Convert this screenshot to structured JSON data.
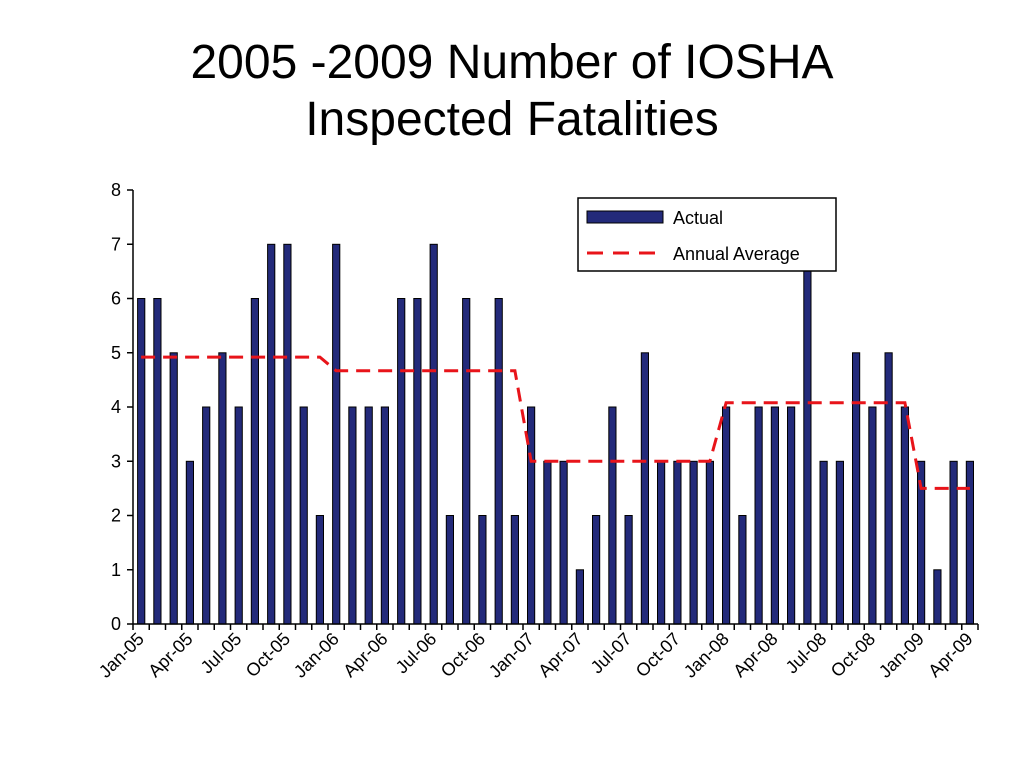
{
  "chart_data": {
    "type": "bar",
    "title": [
      "2005 -2009 Number of IOSHA",
      "Inspected Fatalities"
    ],
    "xlabel": "",
    "ylabel": "",
    "ylim": [
      0,
      8
    ],
    "yticks": [
      "0",
      "1",
      "2",
      "3",
      "4",
      "5",
      "6",
      "7",
      "8"
    ],
    "grid": false,
    "legend_position": "top-right",
    "colors": {
      "bar_fill": "#232a7a",
      "bar_stroke": "#000000",
      "average_line": "#e8141a"
    },
    "tick_labels": [
      "Jan-05",
      "Apr-05",
      "Jul-05",
      "Oct-05",
      "Jan-06",
      "Apr-06",
      "Jul-06",
      "Oct-06",
      "Jan-07",
      "Apr-07",
      "Jul-07",
      "Oct-07",
      "Jan-08",
      "Apr-08",
      "Jul-08",
      "Oct-08",
      "Jan-09",
      "Apr-09"
    ],
    "series": [
      {
        "name": "Actual",
        "kind": "bar",
        "values": [
          6,
          6,
          5,
          3,
          4,
          5,
          4,
          6,
          7,
          7,
          4,
          2,
          7,
          4,
          4,
          4,
          6,
          6,
          7,
          2,
          6,
          2,
          6,
          2,
          4,
          3,
          3,
          1,
          2,
          4,
          2,
          5,
          3,
          3,
          3,
          3,
          4,
          2,
          4,
          4,
          4,
          7,
          3,
          3,
          5,
          4,
          5,
          4,
          3,
          1,
          3,
          3
        ]
      },
      {
        "name": "Annual Average",
        "kind": "dashed-line",
        "values": [
          4.92,
          4.92,
          4.92,
          4.92,
          4.92,
          4.92,
          4.92,
          4.92,
          4.92,
          4.92,
          4.92,
          4.92,
          4.67,
          4.67,
          4.67,
          4.67,
          4.67,
          4.67,
          4.67,
          4.67,
          4.67,
          4.67,
          4.67,
          4.67,
          3.0,
          3.0,
          3.0,
          3.0,
          3.0,
          3.0,
          3.0,
          3.0,
          3.0,
          3.0,
          3.0,
          3.0,
          4.08,
          4.08,
          4.08,
          4.08,
          4.08,
          4.08,
          4.08,
          4.08,
          4.08,
          4.08,
          4.08,
          4.08,
          2.5,
          2.5,
          2.5,
          2.5
        ]
      }
    ]
  }
}
